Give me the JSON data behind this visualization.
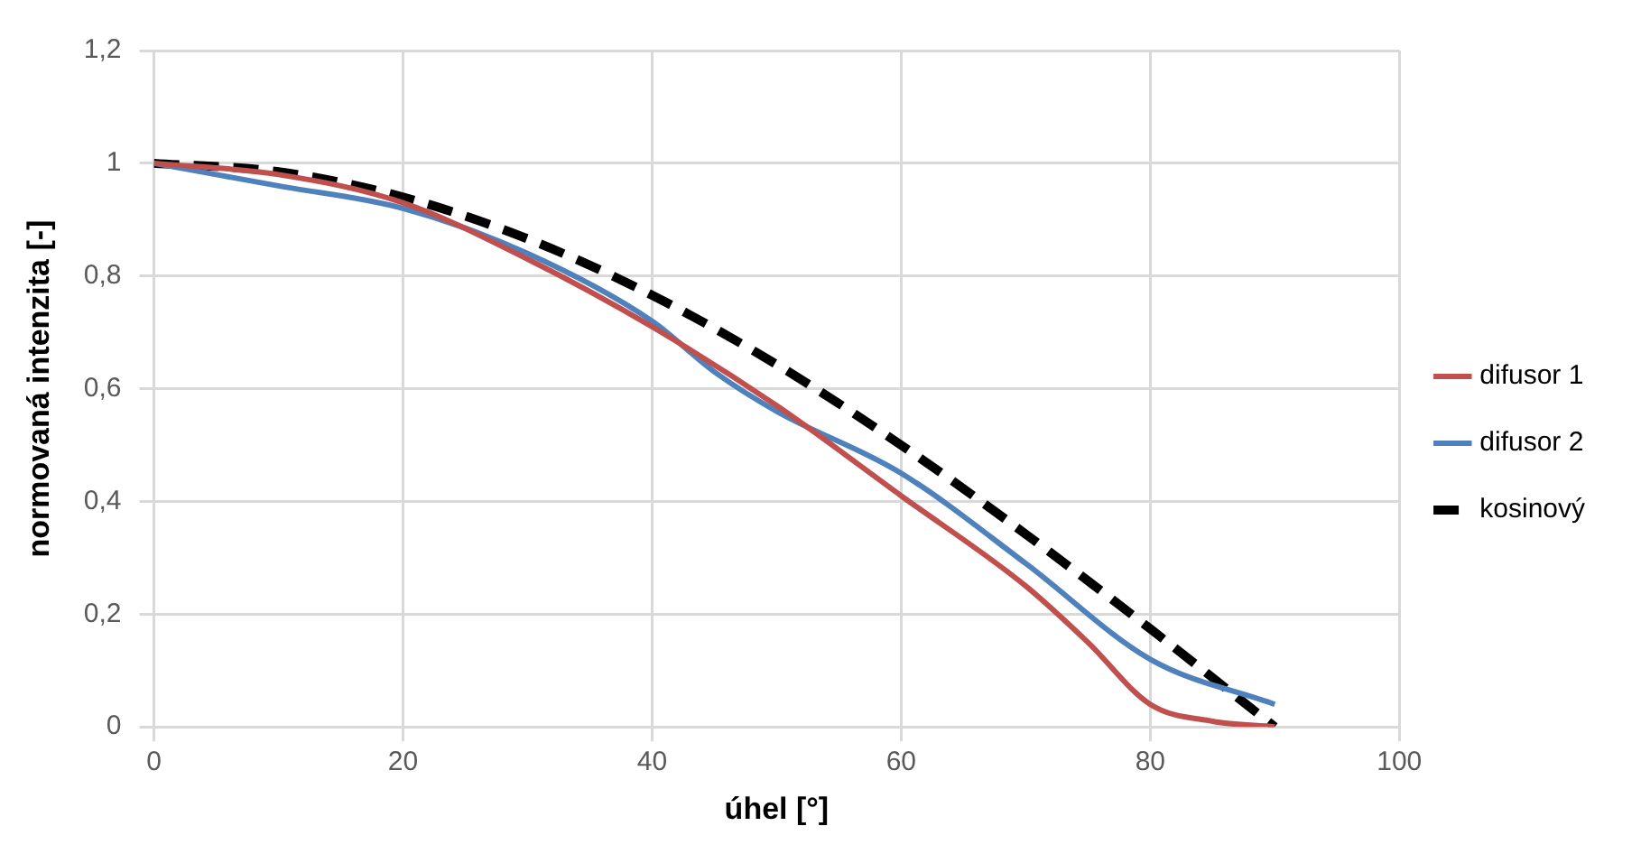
{
  "chart_data": {
    "type": "line",
    "xlabel": "úhel [°]",
    "ylabel": "normovaná intenzita [-]",
    "xlim": [
      0,
      100
    ],
    "xticks": [
      0,
      20,
      40,
      60,
      80,
      100
    ],
    "ylim": [
      0,
      1.2
    ],
    "yticks": [
      {
        "value": 0,
        "label": "0"
      },
      {
        "value": 0.2,
        "label": "0,2"
      },
      {
        "value": 0.4,
        "label": "0,4"
      },
      {
        "value": 0.6,
        "label": "0,6"
      },
      {
        "value": 0.8,
        "label": "0,8"
      },
      {
        "value": 1,
        "label": "1"
      },
      {
        "value": 1.2,
        "label": "1,2"
      }
    ],
    "grid": true,
    "legend": "right",
    "marker": "none",
    "series": [
      {
        "name": "difusor 1",
        "color": "#c0504d",
        "line_style": "solid",
        "x": [
          0,
          10,
          20,
          30,
          40,
          50,
          60,
          70,
          75,
          80,
          85,
          90
        ],
        "values": [
          1,
          0.98,
          0.93,
          0.83,
          0.71,
          0.57,
          0.41,
          0.25,
          0.15,
          0.04,
          0.01,
          0
        ]
      },
      {
        "name": "difusor 2",
        "color": "#4f81bd",
        "line_style": "solid",
        "x": [
          0,
          10,
          20,
          30,
          40,
          45,
          50,
          60,
          70,
          80,
          90
        ],
        "values": [
          1,
          0.96,
          0.92,
          0.84,
          0.72,
          0.63,
          0.56,
          0.45,
          0.29,
          0.12,
          0.04
        ]
      },
      {
        "name": "kosinový",
        "color": "#000000",
        "line_style": "dashed",
        "x": [
          0,
          10,
          20,
          30,
          40,
          50,
          60,
          70,
          80,
          90
        ],
        "values": [
          1,
          0.985,
          0.94,
          0.866,
          0.766,
          0.643,
          0.5,
          0.342,
          0.174,
          0
        ]
      }
    ]
  }
}
